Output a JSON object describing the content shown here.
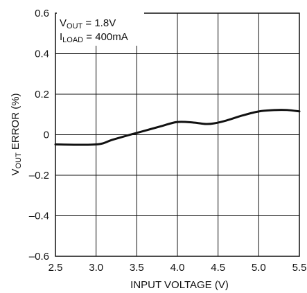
{
  "chart_data": {
    "type": "line",
    "xlabel": "INPUT VOLTAGE (V)",
    "ylabel": {
      "main": "V",
      "sub": "OUT",
      "rest": " ERROR (%)"
    },
    "xlim": [
      2.5,
      5.5
    ],
    "ylim": [
      -0.6,
      0.6
    ],
    "x_ticks": [
      2.5,
      3.0,
      3.5,
      4.0,
      4.5,
      5.0,
      5.5
    ],
    "x_tick_labels": [
      "2.5",
      "3.0",
      "3.5",
      "4.0",
      "4.5",
      "5.0",
      "5.5"
    ],
    "y_ticks": [
      -0.6,
      -0.4,
      -0.2,
      0,
      0.2,
      0.4,
      0.6
    ],
    "y_tick_labels": [
      "–0.6",
      "–0.4",
      "–0.2",
      "0",
      "0.2",
      "0.4",
      "0.6"
    ],
    "grid": true,
    "line_color": "#111111",
    "annotations": [
      {
        "main": "V",
        "sub": "OUT",
        "rest": " = 1.8V"
      },
      {
        "main": "I",
        "sub": "LOAD",
        "rest": " = 400mA"
      }
    ],
    "series": [
      {
        "x": [
          2.5,
          3.0,
          3.2,
          3.4,
          3.6,
          3.8,
          4.0,
          4.2,
          4.35,
          4.45,
          4.6,
          4.8,
          5.0,
          5.2,
          5.35,
          5.5
        ],
        "y": [
          -0.048,
          -0.048,
          -0.025,
          -0.002,
          0.02,
          0.042,
          0.063,
          0.06,
          0.053,
          0.056,
          0.07,
          0.095,
          0.115,
          0.122,
          0.122,
          0.115
        ]
      }
    ]
  }
}
